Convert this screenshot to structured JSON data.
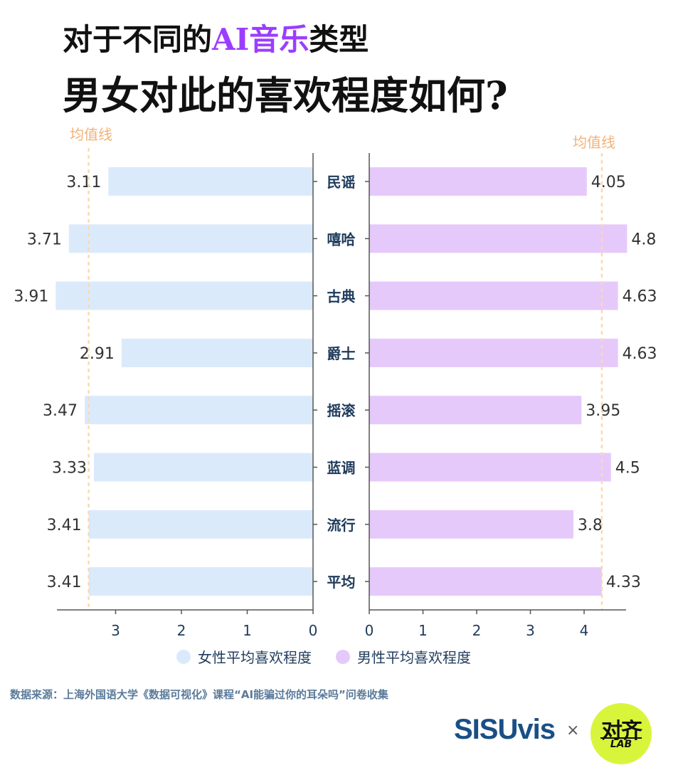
{
  "title": {
    "line1_a": "对于不同的",
    "line1_highlight": "AI音乐",
    "line1_b": "类型",
    "line2": "男女对此的喜欢程度如何?"
  },
  "colors": {
    "female": "#dbeafb",
    "male": "#e6c9fb",
    "avg_line": "#fbd9b0",
    "avg_label": "#f2b27a",
    "axis": "#555555",
    "tick_text": "#1f3b5c",
    "value_text": "#333333",
    "category_text": "#1f3b5c",
    "highlight": "#9b3dff"
  },
  "chart_data": {
    "type": "bar",
    "layout": "back-to-back horizontal",
    "categories": [
      "民谣",
      "嘻哈",
      "古典",
      "爵士",
      "摇滚",
      "蓝调",
      "流行",
      "平均"
    ],
    "series": [
      {
        "name": "女性平均喜欢程度",
        "values": [
          3.11,
          3.71,
          3.91,
          2.91,
          3.47,
          3.33,
          3.41,
          3.41
        ]
      },
      {
        "name": "男性平均喜欢程度",
        "values": [
          4.05,
          4.8,
          4.63,
          4.63,
          3.95,
          4.5,
          3.8,
          4.33
        ]
      }
    ],
    "value_labels_female": [
      "3.11",
      "3.71",
      "3.91",
      "2.91",
      "3.47",
      "3.33",
      "3.41",
      "3.41"
    ],
    "value_labels_male": [
      "4.05",
      "4.8",
      "4.63",
      "4.63",
      "3.95",
      "4.5",
      "3.8",
      "4.33"
    ],
    "female_axis": {
      "ticks": [
        3,
        2,
        1,
        0
      ],
      "range": [
        0,
        3.91
      ]
    },
    "male_axis": {
      "ticks": [
        0,
        1,
        2,
        3,
        4
      ],
      "range": [
        0,
        4.8
      ]
    },
    "average_lines": [
      {
        "label": "均值线",
        "series": "女性平均喜欢程度",
        "value": 3.41
      },
      {
        "label": "均值线",
        "series": "男性平均喜欢程度",
        "value": 4.33
      }
    ]
  },
  "legend": {
    "female_label": "女性平均喜欢程度",
    "male_label": "男性平均喜欢程度"
  },
  "source": "数据来源：上海外国语大学《数据可视化》课程“AI能骗过你的耳朵吗”问卷收集",
  "footer": {
    "brand": "SISUvis",
    "times": "×",
    "badge_top": "对齐",
    "badge_bottom": "LAB"
  }
}
